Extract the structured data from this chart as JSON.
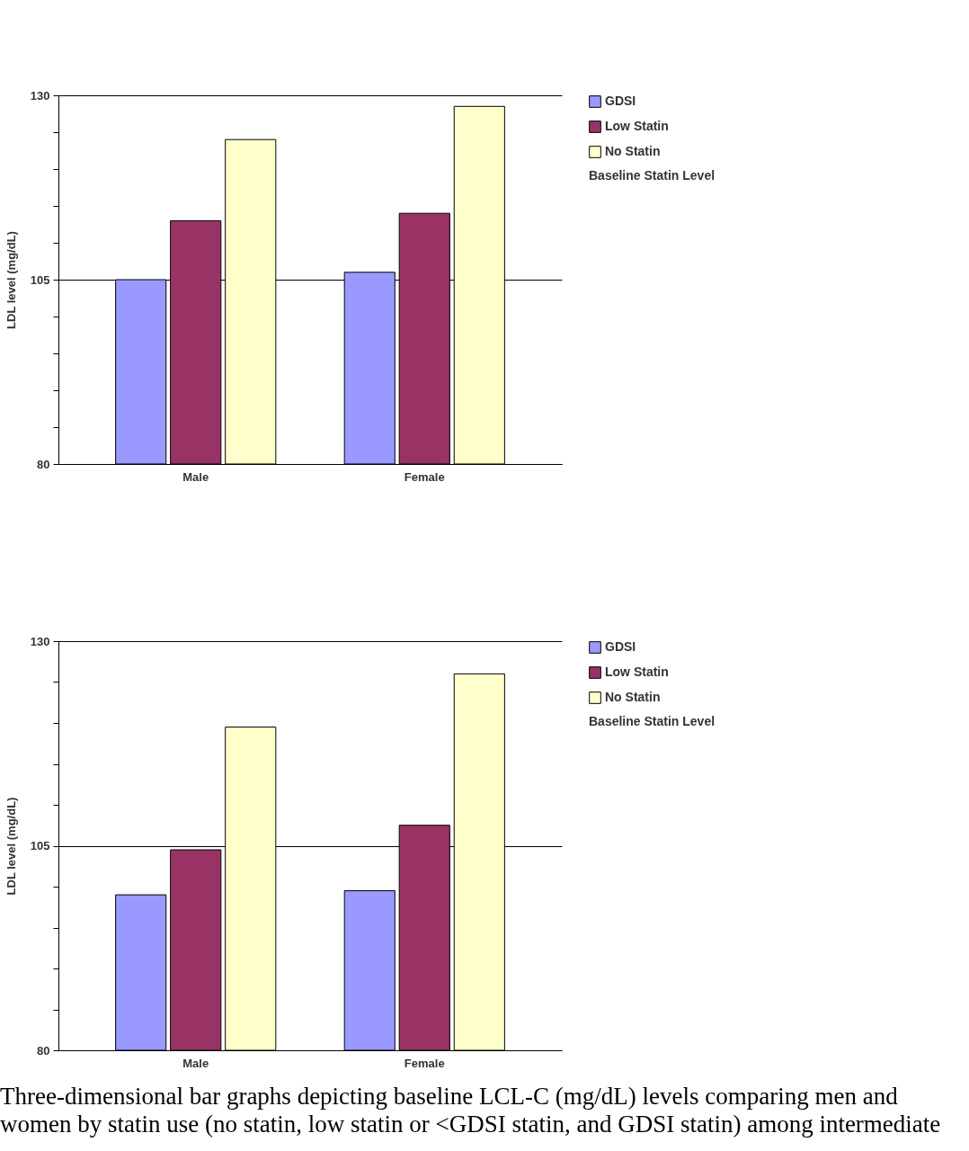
{
  "chart_data": [
    {
      "type": "bar",
      "categories": [
        "Male",
        "Female"
      ],
      "ylabel": "LDL level (mg/dL)",
      "legend_title": "Baseline Statin Level",
      "series": [
        {
          "name": "GDSI",
          "color": "#9999ff",
          "values": [
            105,
            106
          ]
        },
        {
          "name": "Low Statin",
          "color": "#993366",
          "values": [
            113,
            114
          ]
        },
        {
          "name": "No Statin",
          "color": "#ffffcc",
          "values": [
            124,
            128.5
          ]
        }
      ],
      "ylim": [
        80,
        130
      ],
      "yticks": [
        80,
        {
          "value": 85,
          "label": null
        },
        {
          "value": 90,
          "label": null
        },
        {
          "value": 95,
          "label": null
        },
        {
          "value": 100,
          "label": null
        },
        105,
        {
          "value": 110,
          "label": null
        },
        {
          "value": 115,
          "label": null
        },
        {
          "value": 120,
          "label": null
        },
        {
          "value": 125,
          "label": null
        },
        130
      ],
      "grid": "y",
      "legend": "right"
    },
    {
      "type": "bar",
      "categories": [
        "Male",
        "Female"
      ],
      "ylabel": "LDL level (mg/dL)",
      "legend_title": "Baseline Statin Level",
      "series": [
        {
          "name": "GDSI",
          "color": "#9999ff",
          "values": [
            99,
            99.5
          ]
        },
        {
          "name": "Low Statin",
          "color": "#993366",
          "values": [
            104.5,
            107.5
          ]
        },
        {
          "name": "No Statin",
          "color": "#ffffcc",
          "values": [
            119.5,
            126
          ]
        }
      ],
      "ylim": [
        80,
        130
      ],
      "yticks": [
        80,
        {
          "value": 85,
          "label": null
        },
        {
          "value": 90,
          "label": null
        },
        {
          "value": 95,
          "label": null
        },
        {
          "value": 100,
          "label": null
        },
        105,
        {
          "value": 110,
          "label": null
        },
        {
          "value": 115,
          "label": null
        },
        {
          "value": 120,
          "label": null
        },
        {
          "value": 125,
          "label": null
        },
        130
      ],
      "grid": "y",
      "legend": "right",
      "annotations": [
        "Three-dimensional bar graphs depicting baseline LCL-C (mg/dL) levels comparing men and women by statin use (no statin, low statin or <GDSI statin, and GDSI statin) among intermediate"
      ]
    }
  ]
}
